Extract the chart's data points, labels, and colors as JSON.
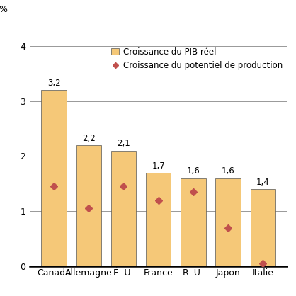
{
  "categories": [
    "Canada",
    "Allemagne",
    "É.-U.",
    "France",
    "R.-U.",
    "Japon",
    "Italie"
  ],
  "bar_values": [
    3.2,
    2.2,
    2.1,
    1.7,
    1.6,
    1.6,
    1.4
  ],
  "diamond_values": [
    1.45,
    1.05,
    1.45,
    1.2,
    1.35,
    0.7,
    0.05
  ],
  "bar_color": "#F5C878",
  "bar_edgecolor": "#555555",
  "diamond_color": "#C0504D",
  "legend_bar_label": "Croissance du PIB réel",
  "legend_diamond_label": "Croissance du potentiel de production",
  "ylabel": "%",
  "ylim": [
    0,
    4.4
  ],
  "yticks": [
    0,
    1,
    2,
    3,
    4
  ],
  "background_color": "#FFFFFF",
  "bar_label_fontsize": 8.5,
  "axis_label_fontsize": 9,
  "legend_fontsize": 8.5,
  "tick_fontsize": 9,
  "grid_color": "#888888",
  "title_color": "#000000"
}
